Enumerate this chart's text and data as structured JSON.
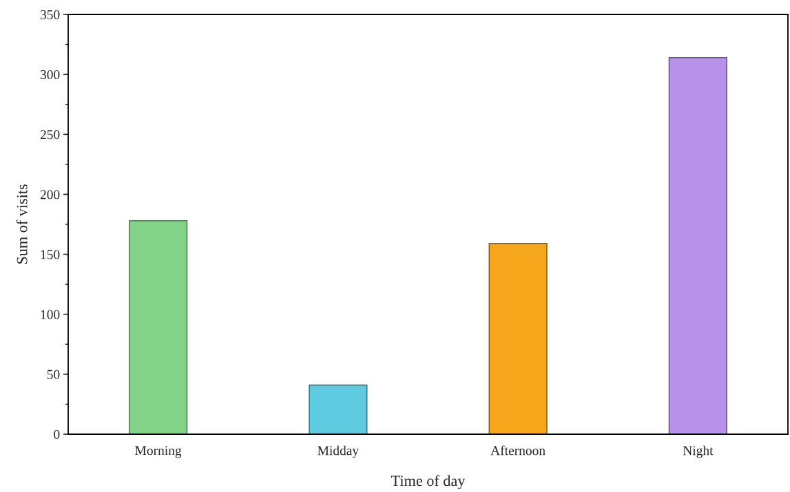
{
  "chart_data": {
    "type": "bar",
    "xlabel": "Time of day",
    "ylabel": "Sum of visits",
    "categories": [
      "Morning",
      "Midday",
      "Afternoon",
      "Night"
    ],
    "values": [
      178,
      41,
      159,
      314
    ],
    "colors": [
      "#82d387",
      "#5ecbe0",
      "#f5a61a",
      "#b891ea"
    ],
    "ylim": [
      0,
      350
    ],
    "yticks": [
      0,
      50,
      100,
      150,
      200,
      250,
      300,
      350
    ],
    "grid": false
  }
}
